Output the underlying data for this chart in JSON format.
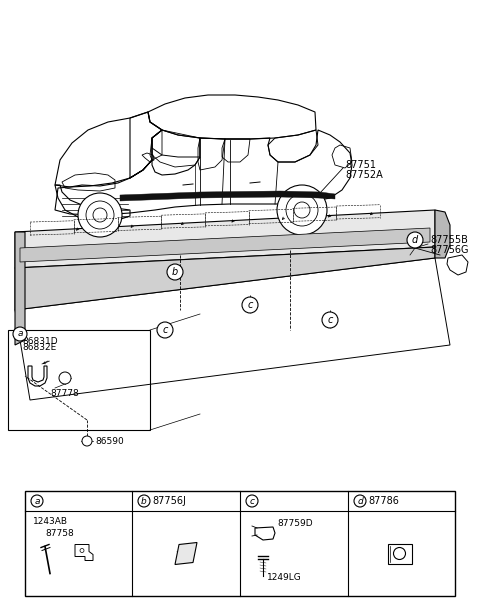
{
  "bg_color": "#ffffff",
  "line_color": "#000000",
  "text_color": "#000000",
  "part_numbers": {
    "main_moulding_1": "87751",
    "main_moulding_2": "87752A",
    "end_cap_1": "87755B",
    "end_cap_2": "87756G",
    "clip_a1": "86831D",
    "clip_a2": "86832E",
    "screw_a": "87778",
    "bolt": "86590",
    "legend_b_num": "87756J",
    "legend_c1": "87759D",
    "legend_c2": "1249LG",
    "legend_d_num": "87786",
    "legend_a1": "1243AB",
    "legend_a2": "87758"
  },
  "legend_labels": [
    "a",
    "b",
    "c",
    "d"
  ],
  "car_color": "#f5f5f5",
  "moulding_top_color": "#e0e0e0",
  "moulding_side_color": "#c8c8c8",
  "moulding_dark_color": "#a0a0a0",
  "moulding_strip_color": "#2a2a2a"
}
